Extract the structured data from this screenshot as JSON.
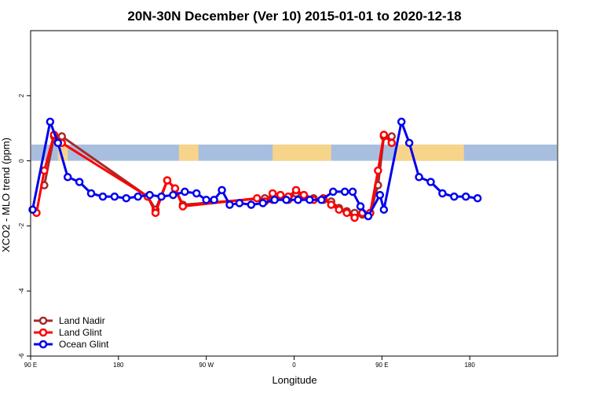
{
  "chart_data": {
    "type": "line",
    "title": "20N-30N December (Ver 10)   2015-01-01 to 2020-12-18",
    "xlabel": "Longitude",
    "ylabel": "XCO2 - MLO trend (ppm)",
    "xlim": [
      -90,
      180
    ],
    "ylim": [
      -6,
      4
    ],
    "x_ticks": [
      {
        "value": -90,
        "label": "90 E"
      },
      {
        "value": -45,
        "label": "180"
      },
      {
        "value": 0,
        "label": "90 W"
      },
      {
        "value": 45,
        "label": "0"
      },
      {
        "value": 90,
        "label": "90 E"
      },
      {
        "value": 135,
        "label": "180"
      }
    ],
    "y_ticks": [
      {
        "value": -6,
        "label": "-6"
      },
      {
        "value": -4,
        "label": "-4"
      },
      {
        "value": -2,
        "label": "-2"
      },
      {
        "value": 0,
        "label": "0"
      },
      {
        "value": 2,
        "label": "2"
      }
    ],
    "grid": false,
    "legend_position": "bottom-left",
    "map_strip": {
      "y_range": [
        0,
        0.5
      ],
      "ocean_color": "#a8bedf",
      "land_color": "#f6d58a",
      "land_segments": [
        [
          -76,
          -71
        ],
        [
          -14,
          -4
        ],
        [
          34,
          64
        ],
        [
          97,
          132
        ]
      ]
    },
    "series": [
      {
        "name": "Land Nadir",
        "color": "#a52a2a",
        "points": [
          {
            "x": -83,
            "y": -0.75
          },
          {
            "x": -78,
            "y": 0.75
          },
          {
            "x": -74,
            "y": 0.75
          },
          {
            "x": -30,
            "y": -1.1
          },
          {
            "x": -26,
            "y": -1.5
          },
          {
            "x": -20,
            "y": -0.6
          },
          {
            "x": -16,
            "y": -0.85
          },
          {
            "x": -12,
            "y": -1.35
          },
          {
            "x": 30,
            "y": -1.15
          },
          {
            "x": 34,
            "y": -1.2
          },
          {
            "x": 38,
            "y": -1.05
          },
          {
            "x": 42,
            "y": -1.2
          },
          {
            "x": 46,
            "y": -1.0
          },
          {
            "x": 50,
            "y": -1.05
          },
          {
            "x": 55,
            "y": -1.15
          },
          {
            "x": 60,
            "y": -1.2
          },
          {
            "x": 64,
            "y": -1.25
          },
          {
            "x": 68,
            "y": -1.45
          },
          {
            "x": 72,
            "y": -1.55
          },
          {
            "x": 76,
            "y": -1.6
          },
          {
            "x": 80,
            "y": -1.65
          },
          {
            "x": 84,
            "y": -1.6
          },
          {
            "x": 88,
            "y": -0.75
          },
          {
            "x": 91,
            "y": 0.75
          },
          {
            "x": 95,
            "y": 0.75
          }
        ]
      },
      {
        "name": "Land Glint",
        "color": "#ff0000",
        "points": [
          {
            "x": -87,
            "y": -1.6
          },
          {
            "x": -83,
            "y": -0.3
          },
          {
            "x": -78,
            "y": 0.8
          },
          {
            "x": -74,
            "y": 0.55
          },
          {
            "x": -30,
            "y": -1.1
          },
          {
            "x": -26,
            "y": -1.6
          },
          {
            "x": -20,
            "y": -0.6
          },
          {
            "x": -16,
            "y": -0.85
          },
          {
            "x": -12,
            "y": -1.4
          },
          {
            "x": 26,
            "y": -1.15
          },
          {
            "x": 30,
            "y": -1.25
          },
          {
            "x": 34,
            "y": -1.0
          },
          {
            "x": 38,
            "y": -1.05
          },
          {
            "x": 42,
            "y": -1.1
          },
          {
            "x": 46,
            "y": -0.9
          },
          {
            "x": 50,
            "y": -1.05
          },
          {
            "x": 55,
            "y": -1.2
          },
          {
            "x": 60,
            "y": -1.15
          },
          {
            "x": 64,
            "y": -1.35
          },
          {
            "x": 68,
            "y": -1.5
          },
          {
            "x": 72,
            "y": -1.6
          },
          {
            "x": 76,
            "y": -1.75
          },
          {
            "x": 80,
            "y": -1.6
          },
          {
            "x": 84,
            "y": -1.6
          },
          {
            "x": 88,
            "y": -0.3
          },
          {
            "x": 91,
            "y": 0.8
          },
          {
            "x": 95,
            "y": 0.55
          }
        ]
      },
      {
        "name": "Ocean Glint",
        "color": "#0000ee",
        "points": [
          {
            "x": -89,
            "y": -1.5
          },
          {
            "x": -80,
            "y": 1.2
          },
          {
            "x": -76,
            "y": 0.55
          },
          {
            "x": -71,
            "y": -0.5
          },
          {
            "x": -65,
            "y": -0.65
          },
          {
            "x": -59,
            "y": -1.0
          },
          {
            "x": -53,
            "y": -1.1
          },
          {
            "x": -47,
            "y": -1.1
          },
          {
            "x": -41,
            "y": -1.15
          },
          {
            "x": -35,
            "y": -1.1
          },
          {
            "x": -29,
            "y": -1.05
          },
          {
            "x": -23,
            "y": -1.1
          },
          {
            "x": -17,
            "y": -1.05
          },
          {
            "x": -11,
            "y": -0.95
          },
          {
            "x": -5,
            "y": -1.0
          },
          {
            "x": 0,
            "y": -1.2
          },
          {
            "x": 4,
            "y": -1.2
          },
          {
            "x": 8,
            "y": -0.9
          },
          {
            "x": 12,
            "y": -1.35
          },
          {
            "x": 17,
            "y": -1.3
          },
          {
            "x": 23,
            "y": -1.35
          },
          {
            "x": 29,
            "y": -1.3
          },
          {
            "x": 35,
            "y": -1.2
          },
          {
            "x": 41,
            "y": -1.2
          },
          {
            "x": 47,
            "y": -1.2
          },
          {
            "x": 53,
            "y": -1.2
          },
          {
            "x": 59,
            "y": -1.2
          },
          {
            "x": 65,
            "y": -0.95
          },
          {
            "x": 71,
            "y": -0.95
          },
          {
            "x": 75,
            "y": -0.95
          },
          {
            "x": 79,
            "y": -1.4
          },
          {
            "x": 83,
            "y": -1.7
          },
          {
            "x": 89,
            "y": -1.05
          },
          {
            "x": 91,
            "y": -1.5
          },
          {
            "x": 100,
            "y": 1.2
          },
          {
            "x": 104,
            "y": 0.55
          },
          {
            "x": 109,
            "y": -0.5
          },
          {
            "x": 115,
            "y": -0.65
          },
          {
            "x": 121,
            "y": -1.0
          },
          {
            "x": 127,
            "y": -1.1
          },
          {
            "x": 133,
            "y": -1.1
          },
          {
            "x": 139,
            "y": -1.15
          }
        ]
      }
    ]
  }
}
